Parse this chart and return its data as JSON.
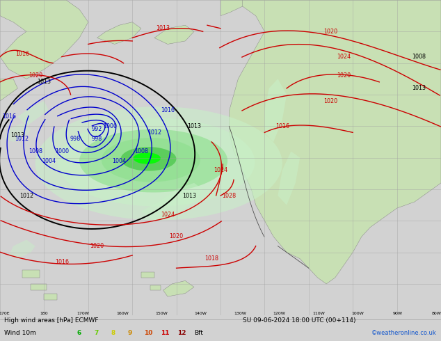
{
  "title_line1": "High wind areas [hPa] ECMWF",
  "title_line2": "SU 09-06-2024 18:00 UTC (00+114)",
  "wind_label": "Wind 10m",
  "bft_label": "Bft",
  "watermark": "©weatheronline.co.uk",
  "sea_color": "#d2d2d2",
  "land_color_light": "#c8e0b4",
  "land_color_dark": "#b0c89a",
  "green_wind_light": "#c8f0c8",
  "green_wind_mid": "#90e090",
  "green_wind_dark": "#50c850",
  "green_wind_bright": "#00ff00",
  "isobar_black": "#000000",
  "isobar_blue": "#0000cc",
  "isobar_red": "#cc0000",
  "grid_color": "#a0a0a0",
  "bottom_bg": "#ffffff",
  "bft_colors": [
    "#00aa00",
    "#00cc00",
    "#cccc00",
    "#cc6600",
    "#cc3300",
    "#cc0000",
    "#880000"
  ],
  "bft_values": [
    "6",
    "7",
    "8",
    "9",
    "10",
    "11",
    "12"
  ],
  "figsize": [
    6.34,
    4.9
  ],
  "dpi": 100
}
